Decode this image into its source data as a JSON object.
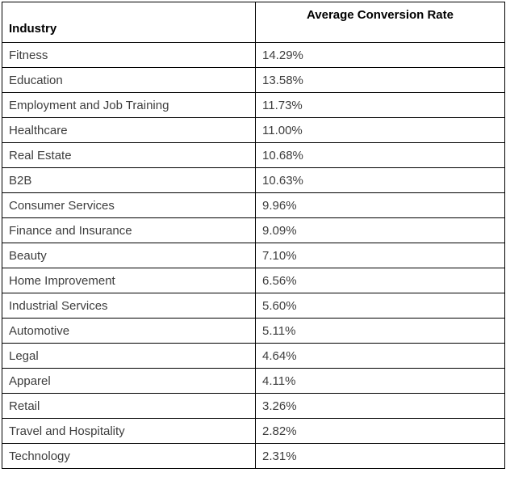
{
  "chart_data": {
    "type": "table",
    "title": "",
    "columns": [
      "Industry",
      "Average Conversion Rate"
    ],
    "rows": [
      {
        "industry": "Fitness",
        "rate": "14.29%"
      },
      {
        "industry": "Education",
        "rate": "13.58%"
      },
      {
        "industry": "Employment and Job Training",
        "rate": "11.73%"
      },
      {
        "industry": "Healthcare",
        "rate": "11.00%"
      },
      {
        "industry": "Real Estate",
        "rate": "10.68%"
      },
      {
        "industry": "B2B",
        "rate": "10.63%"
      },
      {
        "industry": "Consumer Services",
        "rate": "9.96%"
      },
      {
        "industry": "Finance and Insurance",
        "rate": "9.09%"
      },
      {
        "industry": "Beauty",
        "rate": "7.10%"
      },
      {
        "industry": "Home Improvement",
        "rate": "6.56%"
      },
      {
        "industry": "Industrial Services",
        "rate": "5.60%"
      },
      {
        "industry": "Automotive",
        "rate": "5.11%"
      },
      {
        "industry": "Legal",
        "rate": "4.64%"
      },
      {
        "industry": "Apparel",
        "rate": "4.11%"
      },
      {
        "industry": "Retail",
        "rate": "3.26%"
      },
      {
        "industry": "Travel and Hospitality",
        "rate": "2.82%"
      },
      {
        "industry": "Technology",
        "rate": "2.31%"
      }
    ],
    "colors": {
      "border": "#000000",
      "header_text": "#000000",
      "body_text": "#3d3d3d",
      "background": "#ffffff"
    }
  },
  "table": {
    "header": {
      "industry": "Industry",
      "rate": "Average Conversion Rate"
    },
    "rows": [
      {
        "industry": "Fitness",
        "rate": "14.29%"
      },
      {
        "industry": "Education",
        "rate": "13.58%"
      },
      {
        "industry": "Employment and Job Training",
        "rate": "11.73%"
      },
      {
        "industry": "Healthcare",
        "rate": "11.00%"
      },
      {
        "industry": "Real Estate",
        "rate": "10.68%"
      },
      {
        "industry": "B2B",
        "rate": "10.63%"
      },
      {
        "industry": "Consumer Services",
        "rate": "9.96%"
      },
      {
        "industry": "Finance and Insurance",
        "rate": "9.09%"
      },
      {
        "industry": "Beauty",
        "rate": "7.10%"
      },
      {
        "industry": "Home Improvement",
        "rate": "6.56%"
      },
      {
        "industry": "Industrial Services",
        "rate": "5.60%"
      },
      {
        "industry": "Automotive",
        "rate": "5.11%"
      },
      {
        "industry": "Legal",
        "rate": "4.64%"
      },
      {
        "industry": "Apparel",
        "rate": "4.11%"
      },
      {
        "industry": "Retail",
        "rate": "3.26%"
      },
      {
        "industry": "Travel and Hospitality",
        "rate": "2.82%"
      },
      {
        "industry": "Technology",
        "rate": "2.31%"
      }
    ]
  }
}
